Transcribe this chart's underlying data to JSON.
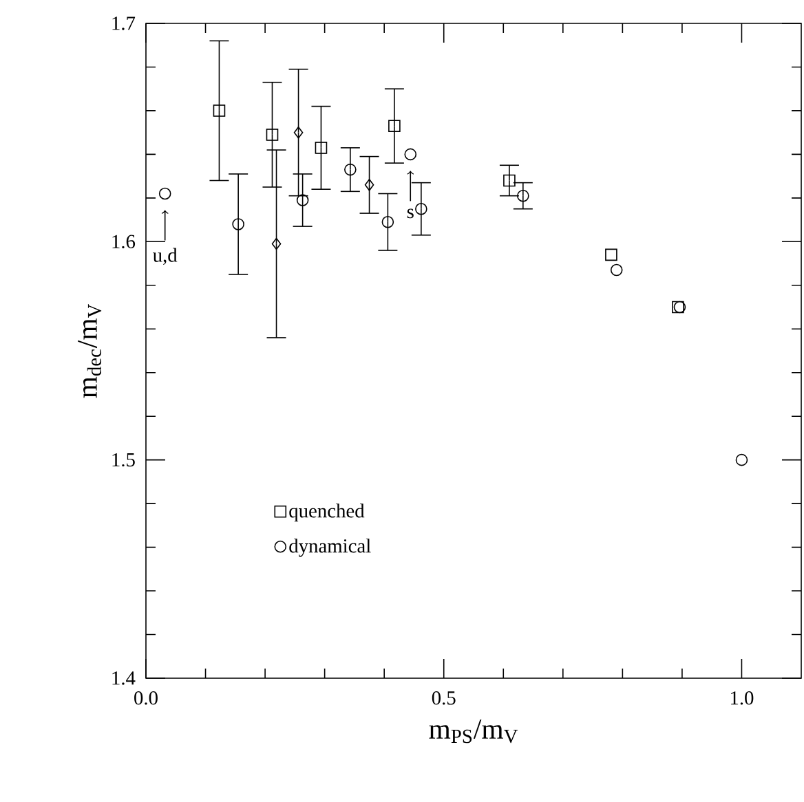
{
  "chart_data": {
    "type": "scatter",
    "xlabel": "m$_{PS}$/m$_{V}$",
    "ylabel": "m$_{dec}$/m$_{V}$",
    "xlim": [
      0,
      1.1
    ],
    "ylim": [
      1.4,
      1.7
    ],
    "xticks": [
      {
        "value": 0,
        "label": "0.0"
      },
      {
        "value": 0.5,
        "label": "0.5"
      },
      {
        "value": 1,
        "label": "1.0"
      }
    ],
    "yticks": [
      1.4,
      1.5,
      1.6,
      1.7
    ],
    "grid": false,
    "legend": "bottom left",
    "series": [
      {
        "name": "quenched",
        "color": "#000000",
        "marker": "square",
        "x": [
          0.123,
          0.212,
          0.294,
          0.417,
          0.61,
          0.781,
          0.893
        ],
        "values": [
          1.66,
          1.649,
          1.643,
          1.653,
          1.628,
          1.594,
          1.57
        ],
        "errors": [
          0.032,
          0.024,
          0.019,
          0.017,
          0.007,
          null,
          null
        ]
      },
      {
        "name": "dynamical",
        "color": "#000000",
        "marker": "circle",
        "x": [
          0.155,
          0.263,
          0.343,
          0.406,
          0.462,
          0.633,
          0.79,
          0.896,
          1.0
        ],
        "values": [
          1.608,
          1.619,
          1.633,
          1.609,
          1.615,
          1.621,
          1.587,
          1.57,
          1.5
        ],
        "errors": [
          0.023,
          0.012,
          0.01,
          0.013,
          0.012,
          0.006,
          null,
          null,
          null
        ]
      },
      {
        "color": "#000000",
        "marker": "diamond",
        "x": [
          0.256,
          0.219,
          0.375
        ],
        "values": [
          1.65,
          1.599,
          1.626
        ],
        "errors": [
          0.029,
          0.043,
          0.013
        ]
      },
      {
        "color": "#000000",
        "marker": "circle",
        "x": [
          0.032,
          0.444
        ],
        "values": [
          1.622,
          1.64
        ]
      }
    ],
    "annotations": [
      {
        "text": "u,d",
        "x": 0.032,
        "y": 1.622
      },
      {
        "text": "s",
        "x": 0.444,
        "y": 1.64
      }
    ]
  }
}
